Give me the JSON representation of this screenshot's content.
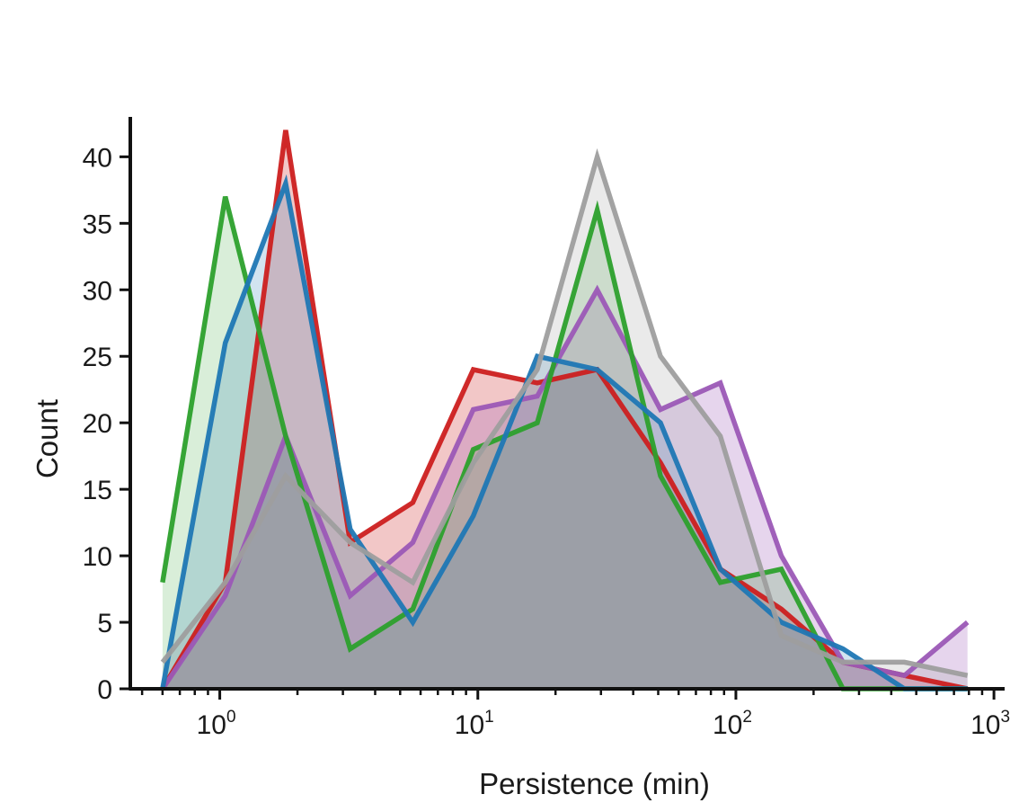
{
  "chart_data": {
    "type": "area",
    "title": "",
    "xlabel": "Persistence (min)",
    "ylabel": "Count",
    "xscale": "log",
    "xlim": [
      0.45,
      1100
    ],
    "ylim": [
      0,
      43
    ],
    "grid": false,
    "legend": "none",
    "x": [
      0.6,
      1.05,
      1.8,
      3.2,
      5.6,
      9.6,
      17,
      29,
      51,
      87,
      150,
      260,
      450,
      790
    ],
    "yticks": [
      {
        "value": 0,
        "label": "0"
      },
      {
        "value": 5,
        "label": "5"
      },
      {
        "value": 10,
        "label": "10"
      },
      {
        "value": 15,
        "label": "15"
      },
      {
        "value": 20,
        "label": "20"
      },
      {
        "value": 25,
        "label": "25"
      },
      {
        "value": 30,
        "label": "30"
      },
      {
        "value": 35,
        "label": "35"
      },
      {
        "value": 40,
        "label": "40"
      }
    ],
    "xticks": [
      {
        "value": 1,
        "base": "10",
        "exp": "0"
      },
      {
        "value": 10,
        "base": "10",
        "exp": "1"
      },
      {
        "value": 100,
        "base": "10",
        "exp": "2"
      },
      {
        "value": 1000,
        "base": "10",
        "exp": "3"
      }
    ],
    "series": [
      {
        "name": "red",
        "color": "#cc1f1f",
        "fill_opacity": 0.25,
        "values": [
          0,
          8,
          42,
          11,
          14,
          24,
          23,
          24,
          17,
          9,
          6,
          2,
          1,
          0
        ]
      },
      {
        "name": "purple",
        "color": "#9b59b6",
        "fill_opacity": 0.25,
        "values": [
          0,
          7,
          19,
          7,
          11,
          21,
          22,
          30,
          21,
          23,
          10,
          2,
          1,
          5
        ]
      },
      {
        "name": "green",
        "color": "#2ca02c",
        "fill_opacity": 0.18,
        "values": [
          8,
          37,
          19,
          3,
          6,
          18,
          20,
          36,
          16,
          8,
          9,
          0,
          0,
          0
        ]
      },
      {
        "name": "blue",
        "color": "#1f77b4",
        "fill_opacity": 0.2,
        "values": [
          0,
          26,
          38,
          12,
          5,
          13,
          25,
          24,
          20,
          9,
          5,
          3,
          0,
          0
        ]
      },
      {
        "name": "gray",
        "color": "#9e9e9e",
        "fill_opacity": 0.22,
        "values": [
          2,
          8,
          16,
          11,
          8,
          17,
          24,
          40,
          25,
          19,
          4,
          2,
          2,
          1
        ]
      }
    ]
  }
}
